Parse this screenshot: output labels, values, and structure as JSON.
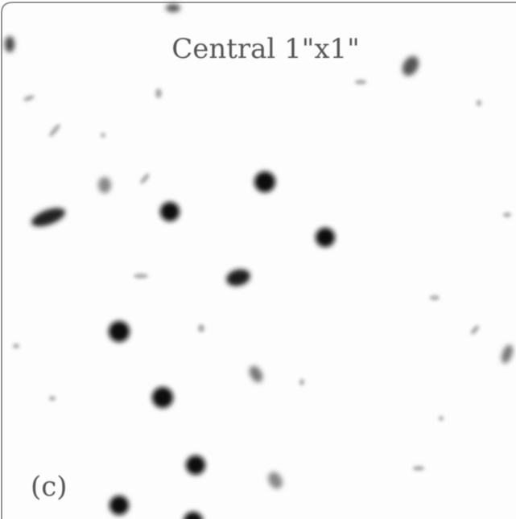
{
  "title": "Central 1\"x1\"",
  "panel_label": "(c)"
}
